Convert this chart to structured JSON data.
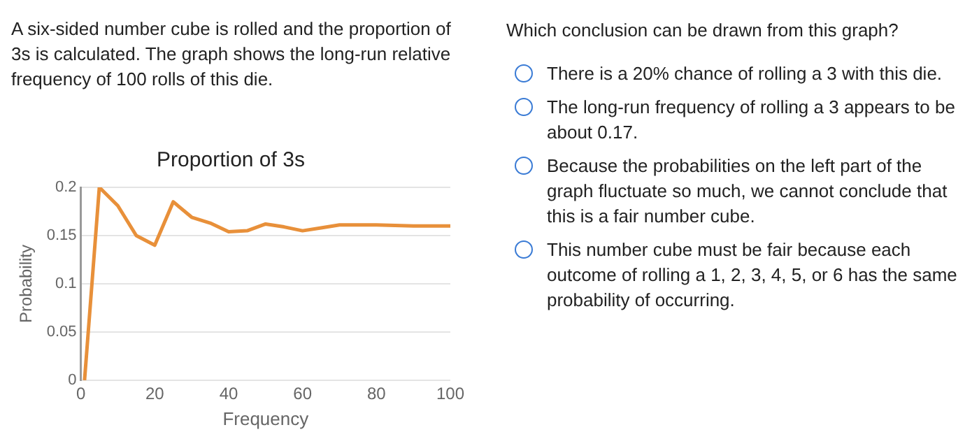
{
  "chart_data": {
    "type": "line",
    "title": "Proportion of 3s",
    "xlabel": "Frequency",
    "ylabel": "Probability",
    "x": [
      1,
      5,
      10,
      15,
      20,
      25,
      30,
      35,
      40,
      45,
      50,
      55,
      60,
      65,
      70,
      80,
      90,
      100
    ],
    "series": [
      {
        "color": "#e8903a",
        "values": [
          0,
          0.2,
          0.181,
          0.15,
          0.14,
          0.185,
          0.169,
          0.163,
          0.154,
          0.155,
          0.162,
          0.159,
          0.155,
          0.158,
          0.161,
          0.161,
          0.16,
          0.16
        ]
      }
    ],
    "xlim": [
      0,
      100
    ],
    "xticks": [
      0,
      20,
      40,
      60,
      80,
      100
    ],
    "ylim": [
      0,
      0.2
    ],
    "yticks": [
      0,
      0.05,
      0.1,
      0.15,
      0.2
    ],
    "grid": "y",
    "legend": false,
    "marker": "none",
    "line_style": "solid",
    "annotations": [
      "A six-sided number cube is rolled and the proportion of 3s is calculated. The graph shows the long-run relative frequency of 100 rolls of this die.",
      "Which conclusion can be drawn from this graph?",
      "There is a 20% chance of rolling a 3 with this die.",
      "The long-run frequency of rolling a 3 appears to be about 0.17.",
      "Because the probabilities on the left part of the graph fluctuate so much, we cannot conclude that this is a fair number cube.",
      "This number cube must be fair because each outcome of rolling a 1, 2, 3, 4, 5, or 6 has the same probability of occurring."
    ]
  }
}
